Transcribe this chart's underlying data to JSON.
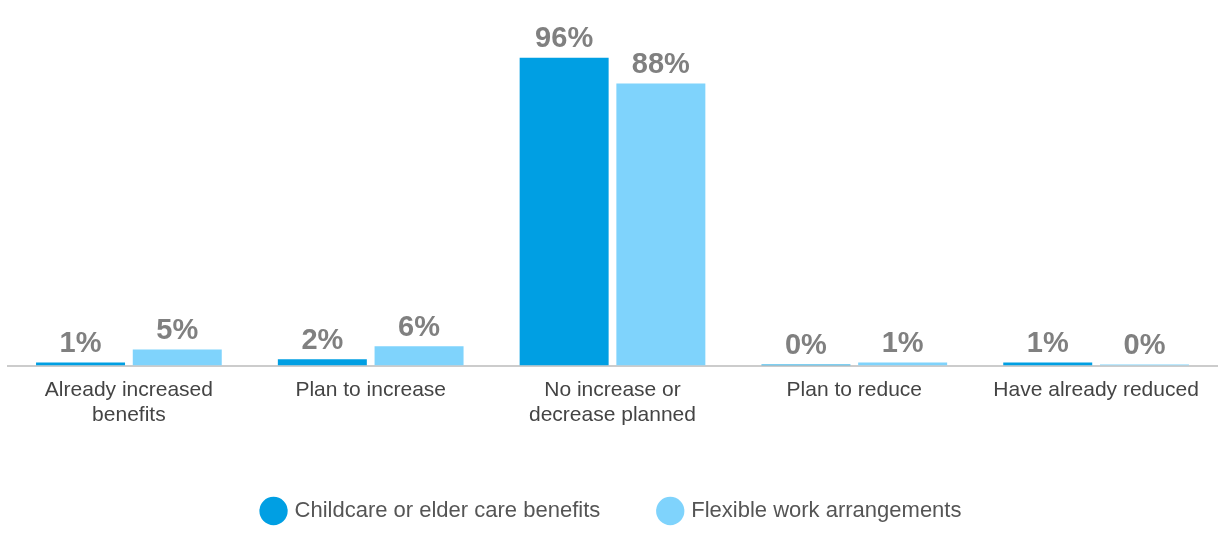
{
  "chart_data": {
    "type": "bar",
    "categories": [
      "Already increased benefits",
      "Plan to increase",
      "No increase or decrease planned",
      "Plan to reduce",
      "Have already reduced"
    ],
    "series": [
      {
        "name": "Childcare or elder care benefits",
        "color": "#009fe3",
        "values": [
          1,
          2,
          96,
          0,
          1
        ],
        "value_labels": [
          "1%",
          "2%",
          "96%",
          "0%",
          "1%"
        ]
      },
      {
        "name": "Flexible work arrangements",
        "color": "#7fd3fc",
        "values": [
          5,
          6,
          88,
          1,
          0
        ],
        "value_labels": [
          "5%",
          "6%",
          "88%",
          "1%",
          "0%"
        ]
      }
    ],
    "legend": "bottom",
    "grid": false
  }
}
